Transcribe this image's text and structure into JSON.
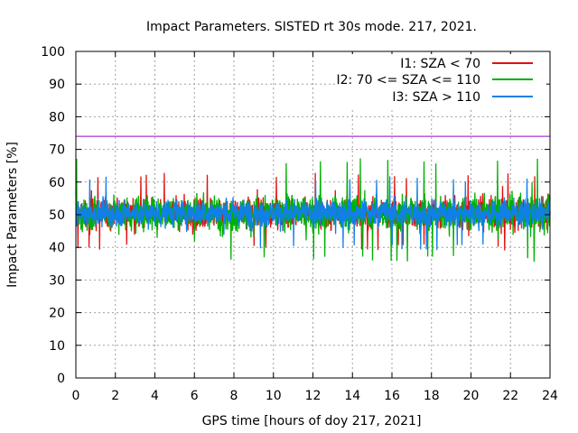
{
  "chart_data": {
    "type": "line",
    "title": "Impact Parameters. SISTED rt 30s mode. 217, 2021.",
    "xlabel": "GPS time [hours of doy 217, 2021]",
    "ylabel": "Impact Parameters [%]",
    "xlim": [
      0,
      24
    ],
    "ylim": [
      0,
      100
    ],
    "xticks": [
      0,
      2,
      4,
      6,
      8,
      10,
      12,
      14,
      16,
      18,
      20,
      22,
      24
    ],
    "yticks": [
      0,
      10,
      20,
      30,
      40,
      50,
      60,
      70,
      80,
      90,
      100
    ],
    "grid": true,
    "legend_position": "top-right",
    "reference_line": {
      "value": 74,
      "color": "#9400d3"
    },
    "series": [
      {
        "name": "I1: SZA < 70",
        "color": "#e01010",
        "mean": 50.5,
        "typical_min": 43,
        "typical_max": 58,
        "extreme_min": 39,
        "extreme_max": 63
      },
      {
        "name": "I2: 70 <= SZA <= 110",
        "color": "#00b000",
        "mean": 50.5,
        "typical_min": 42,
        "typical_max": 59,
        "extreme_min": 35.5,
        "extreme_max": 67.5
      },
      {
        "name": "I3: SZA > 110",
        "color": "#1080e8",
        "mean": 50.5,
        "typical_min": 44,
        "typical_max": 57,
        "extreme_min": 39,
        "extreme_max": 62
      }
    ]
  }
}
